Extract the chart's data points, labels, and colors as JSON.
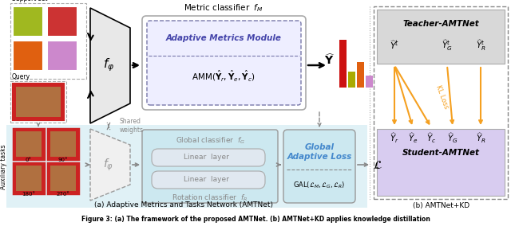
{
  "fig_width": 6.4,
  "fig_height": 2.84,
  "dpi": 100,
  "bg_color": "#ffffff",
  "caption": "Figure 3: (a) The framework of the proposed AMTNet. (b) AMTNet+KD applies knowledge distillation",
  "subcap_a": "(a) Adaptive Metrics and Tasks Network (AMTNet)",
  "subcap_b": "(b) AMTNet+KD",
  "light_blue_bg": "#cce8f0",
  "light_gray_bg": "#e0e0e0",
  "light_purple_bg": "#d8ccf0",
  "orange_arrow": "#f5a020",
  "dark_red_bar": "#cc1111",
  "olive_bar": "#aaaa00",
  "orange_bar": "#e06010",
  "purple_bar": "#cc88cc",
  "img_colors": [
    "#a0b820",
    "#cc3333",
    "#e06010",
    "#cc88cc"
  ],
  "aux_color": "#cc2222"
}
